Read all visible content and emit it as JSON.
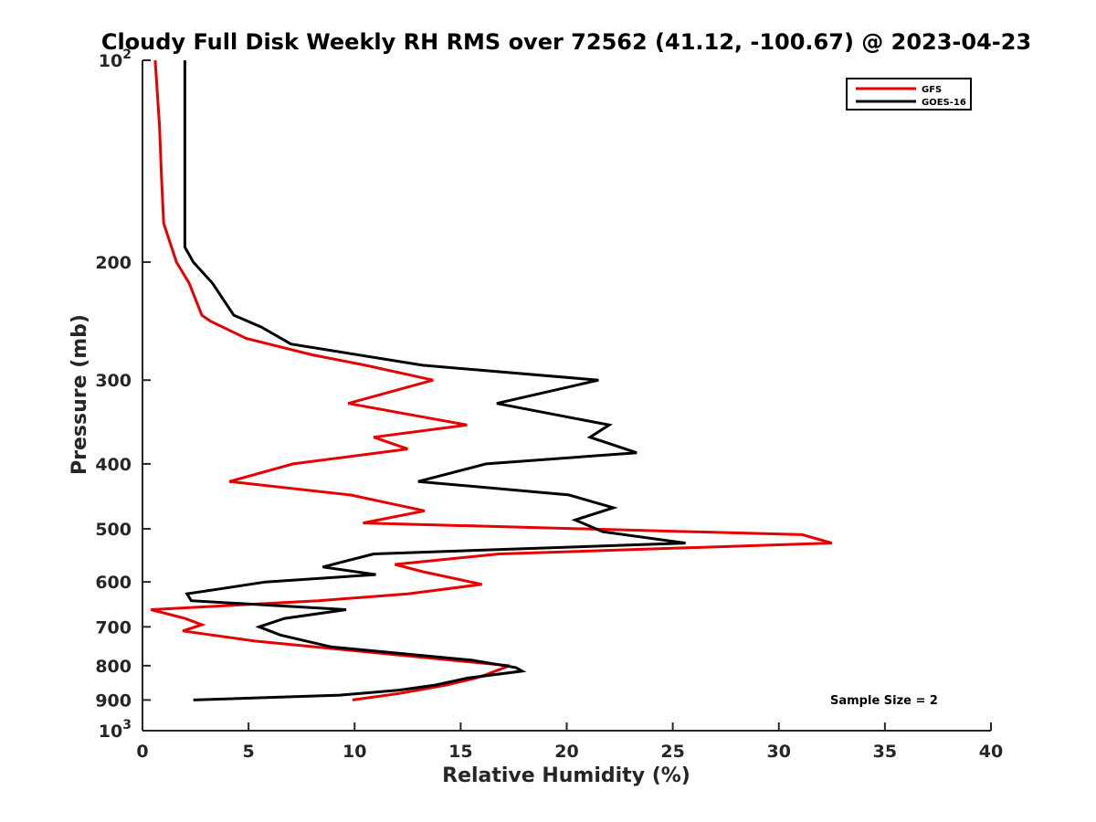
{
  "chart_data": {
    "type": "line",
    "title": "Cloudy Full Disk Weekly RH RMS over 72562 (41.12, -100.67) @ 2023-04-23",
    "xlabel": "Relative Humidity (%)",
    "ylabel": "Pressure (mb)",
    "xlim": [
      0,
      40
    ],
    "ylim": [
      100,
      1000
    ],
    "y_scale": "log",
    "y_reversed": true,
    "x_ticks": [
      "0",
      "5",
      "10",
      "15",
      "20",
      "25",
      "30",
      "35",
      "40"
    ],
    "y_ticks": [
      {
        "value": 100,
        "base": "10",
        "exp": "2"
      },
      {
        "value": 200,
        "label": "200"
      },
      {
        "value": 300,
        "label": "300"
      },
      {
        "value": 400,
        "label": "400"
      },
      {
        "value": 500,
        "label": "500"
      },
      {
        "value": 600,
        "label": "600"
      },
      {
        "value": 700,
        "label": "700"
      },
      {
        "value": 800,
        "label": "800"
      },
      {
        "value": 900,
        "label": "900"
      },
      {
        "value": 1000,
        "base": "10",
        "exp": "3"
      }
    ],
    "legend_position": "top-right",
    "annotation": "Sample Size = 2",
    "series": [
      {
        "name": "GFS",
        "color": "#e60000",
        "points": [
          [
            0.6,
            100
          ],
          [
            0.8,
            125
          ],
          [
            0.9,
            150
          ],
          [
            1.0,
            175
          ],
          [
            1.6,
            200
          ],
          [
            2.2,
            215
          ],
          [
            2.8,
            240
          ],
          [
            3.2,
            245
          ],
          [
            4.9,
            260
          ],
          [
            8.0,
            275
          ],
          [
            10.5,
            285
          ],
          [
            13.7,
            300
          ],
          [
            9.7,
            325
          ],
          [
            15.3,
            350
          ],
          [
            10.9,
            365
          ],
          [
            12.5,
            380
          ],
          [
            7.1,
            400
          ],
          [
            4.1,
            425
          ],
          [
            9.8,
            445
          ],
          [
            13.3,
            470
          ],
          [
            10.4,
            490
          ],
          [
            31.1,
            510
          ],
          [
            32.5,
            525
          ],
          [
            16.8,
            545
          ],
          [
            11.9,
            565
          ],
          [
            13.3,
            580
          ],
          [
            16.0,
            605
          ],
          [
            12.5,
            625
          ],
          [
            8.3,
            640
          ],
          [
            0.4,
            660
          ],
          [
            2.0,
            680
          ],
          [
            2.8,
            695
          ],
          [
            1.9,
            710
          ],
          [
            5.3,
            735
          ],
          [
            11.9,
            770
          ],
          [
            15.5,
            790
          ],
          [
            17.3,
            800
          ],
          [
            16.2,
            825
          ],
          [
            15.7,
            835
          ],
          [
            14.3,
            855
          ],
          [
            12.1,
            880
          ],
          [
            9.9,
            900
          ]
        ]
      },
      {
        "name": "GOES-16",
        "color": "#000000",
        "points": [
          [
            2.0,
            100
          ],
          [
            2.0,
            125
          ],
          [
            2.0,
            150
          ],
          [
            2.0,
            175
          ],
          [
            2.0,
            190
          ],
          [
            2.4,
            200
          ],
          [
            3.3,
            215
          ],
          [
            4.3,
            240
          ],
          [
            5.6,
            250
          ],
          [
            7.0,
            265
          ],
          [
            13.2,
            285
          ],
          [
            21.5,
            300
          ],
          [
            16.7,
            325
          ],
          [
            22.0,
            350
          ],
          [
            21.1,
            365
          ],
          [
            23.3,
            385
          ],
          [
            16.2,
            400
          ],
          [
            13.0,
            425
          ],
          [
            20.1,
            445
          ],
          [
            22.2,
            465
          ],
          [
            20.4,
            485
          ],
          [
            21.7,
            505
          ],
          [
            25.6,
            525
          ],
          [
            10.9,
            545
          ],
          [
            8.5,
            570
          ],
          [
            11.0,
            585
          ],
          [
            5.8,
            600
          ],
          [
            2.1,
            625
          ],
          [
            2.3,
            640
          ],
          [
            9.6,
            660
          ],
          [
            6.7,
            680
          ],
          [
            5.5,
            700
          ],
          [
            6.5,
            720
          ],
          [
            8.9,
            750
          ],
          [
            15.5,
            785
          ],
          [
            17.6,
            805
          ],
          [
            17.9,
            815
          ],
          [
            15.3,
            835
          ],
          [
            13.8,
            855
          ],
          [
            12.1,
            870
          ],
          [
            9.3,
            885
          ],
          [
            2.4,
            900
          ]
        ]
      }
    ]
  }
}
